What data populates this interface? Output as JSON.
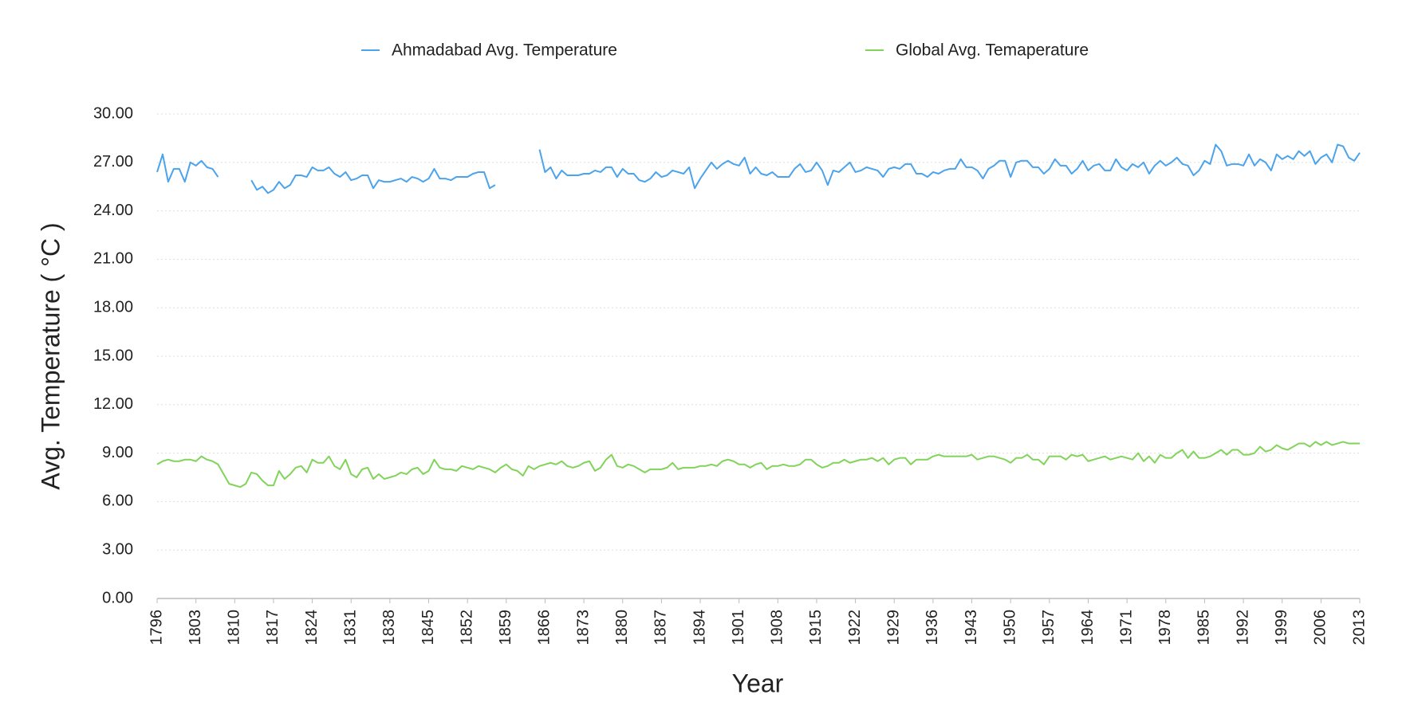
{
  "chart_data": {
    "type": "line",
    "x_label": "Year",
    "y_label": "Avg. Temperature ( °C )",
    "x": [
      1796,
      1797,
      1798,
      1799,
      1800,
      1801,
      1802,
      1803,
      1804,
      1805,
      1806,
      1807,
      1808,
      1809,
      1810,
      1811,
      1812,
      1813,
      1814,
      1815,
      1816,
      1817,
      1818,
      1819,
      1820,
      1821,
      1822,
      1823,
      1824,
      1825,
      1826,
      1827,
      1828,
      1829,
      1830,
      1831,
      1832,
      1833,
      1834,
      1835,
      1836,
      1837,
      1838,
      1839,
      1840,
      1841,
      1842,
      1843,
      1844,
      1845,
      1846,
      1847,
      1848,
      1849,
      1850,
      1851,
      1852,
      1853,
      1854,
      1855,
      1856,
      1857,
      1858,
      1859,
      1860,
      1861,
      1862,
      1863,
      1864,
      1865,
      1866,
      1867,
      1868,
      1869,
      1870,
      1871,
      1872,
      1873,
      1874,
      1875,
      1876,
      1877,
      1878,
      1879,
      1880,
      1881,
      1882,
      1883,
      1884,
      1885,
      1886,
      1887,
      1888,
      1889,
      1890,
      1891,
      1892,
      1893,
      1894,
      1895,
      1896,
      1897,
      1898,
      1899,
      1900,
      1901,
      1902,
      1903,
      1904,
      1905,
      1906,
      1907,
      1908,
      1909,
      1910,
      1911,
      1912,
      1913,
      1914,
      1915,
      1916,
      1917,
      1918,
      1919,
      1920,
      1921,
      1922,
      1923,
      1924,
      1925,
      1926,
      1927,
      1928,
      1929,
      1930,
      1931,
      1932,
      1933,
      1934,
      1935,
      1936,
      1937,
      1938,
      1939,
      1940,
      1941,
      1942,
      1943,
      1944,
      1945,
      1946,
      1947,
      1948,
      1949,
      1950,
      1951,
      1952,
      1953,
      1954,
      1955,
      1956,
      1957,
      1958,
      1959,
      1960,
      1961,
      1962,
      1963,
      1964,
      1965,
      1966,
      1967,
      1968,
      1969,
      1970,
      1971,
      1972,
      1973,
      1974,
      1975,
      1976,
      1977,
      1978,
      1979,
      1980,
      1981,
      1982,
      1983,
      1984,
      1985,
      1986,
      1987,
      1988,
      1989,
      1990,
      1991,
      1992,
      1993,
      1994,
      1995,
      1996,
      1997,
      1998,
      1999,
      2000,
      2001,
      2002,
      2003,
      2004,
      2005,
      2006,
      2007,
      2008,
      2009,
      2010,
      2011,
      2012,
      2013
    ],
    "xlim": [
      1796,
      2013
    ],
    "xticks": [
      1796,
      1803,
      1810,
      1817,
      1824,
      1831,
      1838,
      1845,
      1852,
      1859,
      1866,
      1873,
      1880,
      1887,
      1894,
      1901,
      1908,
      1915,
      1922,
      1929,
      1936,
      1943,
      1950,
      1957,
      1964,
      1971,
      1978,
      1985,
      1992,
      1999,
      2006,
      2013
    ],
    "ylim": [
      0,
      30
    ],
    "yticks": [
      {
        "value": 0,
        "label": "0.00"
      },
      {
        "value": 3,
        "label": "3.00"
      },
      {
        "value": 6,
        "label": "6.00"
      },
      {
        "value": 9,
        "label": "9.00"
      },
      {
        "value": 12,
        "label": "12.00"
      },
      {
        "value": 15,
        "label": "15.00"
      },
      {
        "value": 18,
        "label": "18.00"
      },
      {
        "value": 21,
        "label": "21.00"
      },
      {
        "value": 24,
        "label": "24.00"
      },
      {
        "value": 27,
        "label": "27.00"
      },
      {
        "value": 30,
        "label": "30.00"
      }
    ],
    "grid": true,
    "legend": "top",
    "series": [
      {
        "name": "Ahmadabad Avg. Temperature",
        "color": "#4aa3ec",
        "values": [
          26.4,
          27.5,
          25.8,
          26.6,
          26.6,
          25.8,
          27.0,
          26.8,
          27.1,
          26.7,
          26.6,
          26.1,
          null,
          null,
          null,
          null,
          null,
          25.9,
          25.3,
          25.5,
          25.1,
          25.3,
          25.8,
          25.4,
          25.6,
          26.2,
          26.2,
          26.1,
          26.7,
          26.5,
          26.5,
          26.7,
          26.3,
          26.1,
          26.4,
          25.9,
          26.0,
          26.2,
          26.2,
          25.4,
          25.9,
          25.8,
          25.8,
          25.9,
          26.0,
          25.8,
          26.1,
          26.0,
          25.8,
          26.0,
          26.6,
          26.0,
          26.0,
          25.9,
          26.1,
          26.1,
          26.1,
          26.3,
          26.4,
          26.4,
          25.4,
          25.6,
          null,
          null,
          null,
          null,
          null,
          null,
          null,
          27.8,
          26.4,
          26.7,
          26.0,
          26.5,
          26.2,
          26.2,
          26.2,
          26.3,
          26.3,
          26.5,
          26.4,
          26.7,
          26.7,
          26.1,
          26.6,
          26.3,
          26.3,
          25.9,
          25.8,
          26.0,
          26.4,
          26.1,
          26.2,
          26.5,
          26.4,
          26.3,
          26.7,
          25.4,
          26.0,
          26.5,
          27.0,
          26.6,
          26.9,
          27.1,
          26.9,
          26.8,
          27.3,
          26.3,
          26.7,
          26.3,
          26.2,
          26.4,
          26.1,
          26.1,
          26.1,
          26.6,
          26.9,
          26.4,
          26.5,
          27.0,
          26.5,
          25.6,
          26.5,
          26.4,
          26.7,
          27.0,
          26.4,
          26.5,
          26.7,
          26.6,
          26.5,
          26.1,
          26.6,
          26.7,
          26.6,
          26.9,
          26.9,
          26.3,
          26.3,
          26.1,
          26.4,
          26.3,
          26.5,
          26.6,
          26.6,
          27.2,
          26.7,
          26.7,
          26.5,
          26.0,
          26.6,
          26.8,
          27.1,
          27.1,
          26.1,
          27.0,
          27.1,
          27.1,
          26.7,
          26.7,
          26.3,
          26.6,
          27.2,
          26.8,
          26.8,
          26.3,
          26.6,
          27.1,
          26.5,
          26.8,
          26.9,
          26.5,
          26.5,
          27.2,
          26.7,
          26.5,
          26.9,
          26.7,
          27.0,
          26.3,
          26.8,
          27.1,
          26.8,
          27.0,
          27.3,
          26.9,
          26.8,
          26.2,
          26.5,
          27.1,
          26.9,
          28.1,
          27.7,
          26.8,
          26.9,
          26.9,
          26.8,
          27.5,
          26.8,
          27.2,
          27.0,
          26.5,
          27.5,
          27.2,
          27.4,
          27.2,
          27.7,
          27.4,
          27.7,
          26.9,
          27.3,
          27.5,
          27.0,
          28.1,
          28.0,
          27.3,
          27.1,
          27.6
        ]
      },
      {
        "name": "Global Avg. Temaperature",
        "color": "#82d35a",
        "values": [
          8.3,
          8.5,
          8.6,
          8.5,
          8.5,
          8.6,
          8.6,
          8.5,
          8.8,
          8.6,
          8.5,
          8.3,
          7.7,
          7.1,
          7.0,
          6.9,
          7.1,
          7.8,
          7.7,
          7.3,
          7.0,
          7.0,
          7.9,
          7.4,
          7.7,
          8.1,
          8.2,
          7.8,
          8.6,
          8.4,
          8.4,
          8.8,
          8.2,
          8.0,
          8.6,
          7.7,
          7.5,
          8.0,
          8.1,
          7.4,
          7.7,
          7.4,
          7.5,
          7.6,
          7.8,
          7.7,
          8.0,
          8.1,
          7.7,
          7.9,
          8.6,
          8.1,
          8.0,
          8.0,
          7.9,
          8.2,
          8.1,
          8.0,
          8.2,
          8.1,
          8.0,
          7.8,
          8.1,
          8.3,
          8.0,
          7.9,
          7.6,
          8.2,
          8.0,
          8.2,
          8.3,
          8.4,
          8.3,
          8.5,
          8.2,
          8.1,
          8.2,
          8.4,
          8.5,
          7.9,
          8.1,
          8.6,
          8.9,
          8.2,
          8.1,
          8.3,
          8.2,
          8.0,
          7.8,
          8.0,
          8.0,
          8.0,
          8.1,
          8.4,
          8.0,
          8.1,
          8.1,
          8.1,
          8.2,
          8.2,
          8.3,
          8.2,
          8.5,
          8.6,
          8.5,
          8.3,
          8.3,
          8.1,
          8.3,
          8.4,
          8.0,
          8.2,
          8.2,
          8.3,
          8.2,
          8.2,
          8.3,
          8.6,
          8.6,
          8.3,
          8.1,
          8.2,
          8.4,
          8.4,
          8.6,
          8.4,
          8.5,
          8.6,
          8.6,
          8.7,
          8.5,
          8.7,
          8.3,
          8.6,
          8.7,
          8.7,
          8.3,
          8.6,
          8.6,
          8.6,
          8.8,
          8.9,
          8.8,
          8.8,
          8.8,
          8.8,
          8.8,
          8.9,
          8.6,
          8.7,
          8.8,
          8.8,
          8.7,
          8.6,
          8.4,
          8.7,
          8.7,
          8.9,
          8.6,
          8.6,
          8.3,
          8.8,
          8.8,
          8.8,
          8.6,
          8.9,
          8.8,
          8.9,
          8.5,
          8.6,
          8.7,
          8.8,
          8.6,
          8.7,
          8.8,
          8.7,
          8.6,
          9.0,
          8.5,
          8.8,
          8.4,
          8.9,
          8.7,
          8.7,
          9.0,
          9.2,
          8.7,
          9.1,
          8.7,
          8.7,
          8.8,
          9.0,
          9.2,
          8.9,
          9.2,
          9.2,
          8.9,
          8.9,
          9.0,
          9.4,
          9.1,
          9.2,
          9.5,
          9.3,
          9.2,
          9.4,
          9.6,
          9.6,
          9.4,
          9.7,
          9.5,
          9.7,
          9.5,
          9.6,
          9.7,
          9.6,
          9.6,
          9.6
        ]
      }
    ]
  }
}
